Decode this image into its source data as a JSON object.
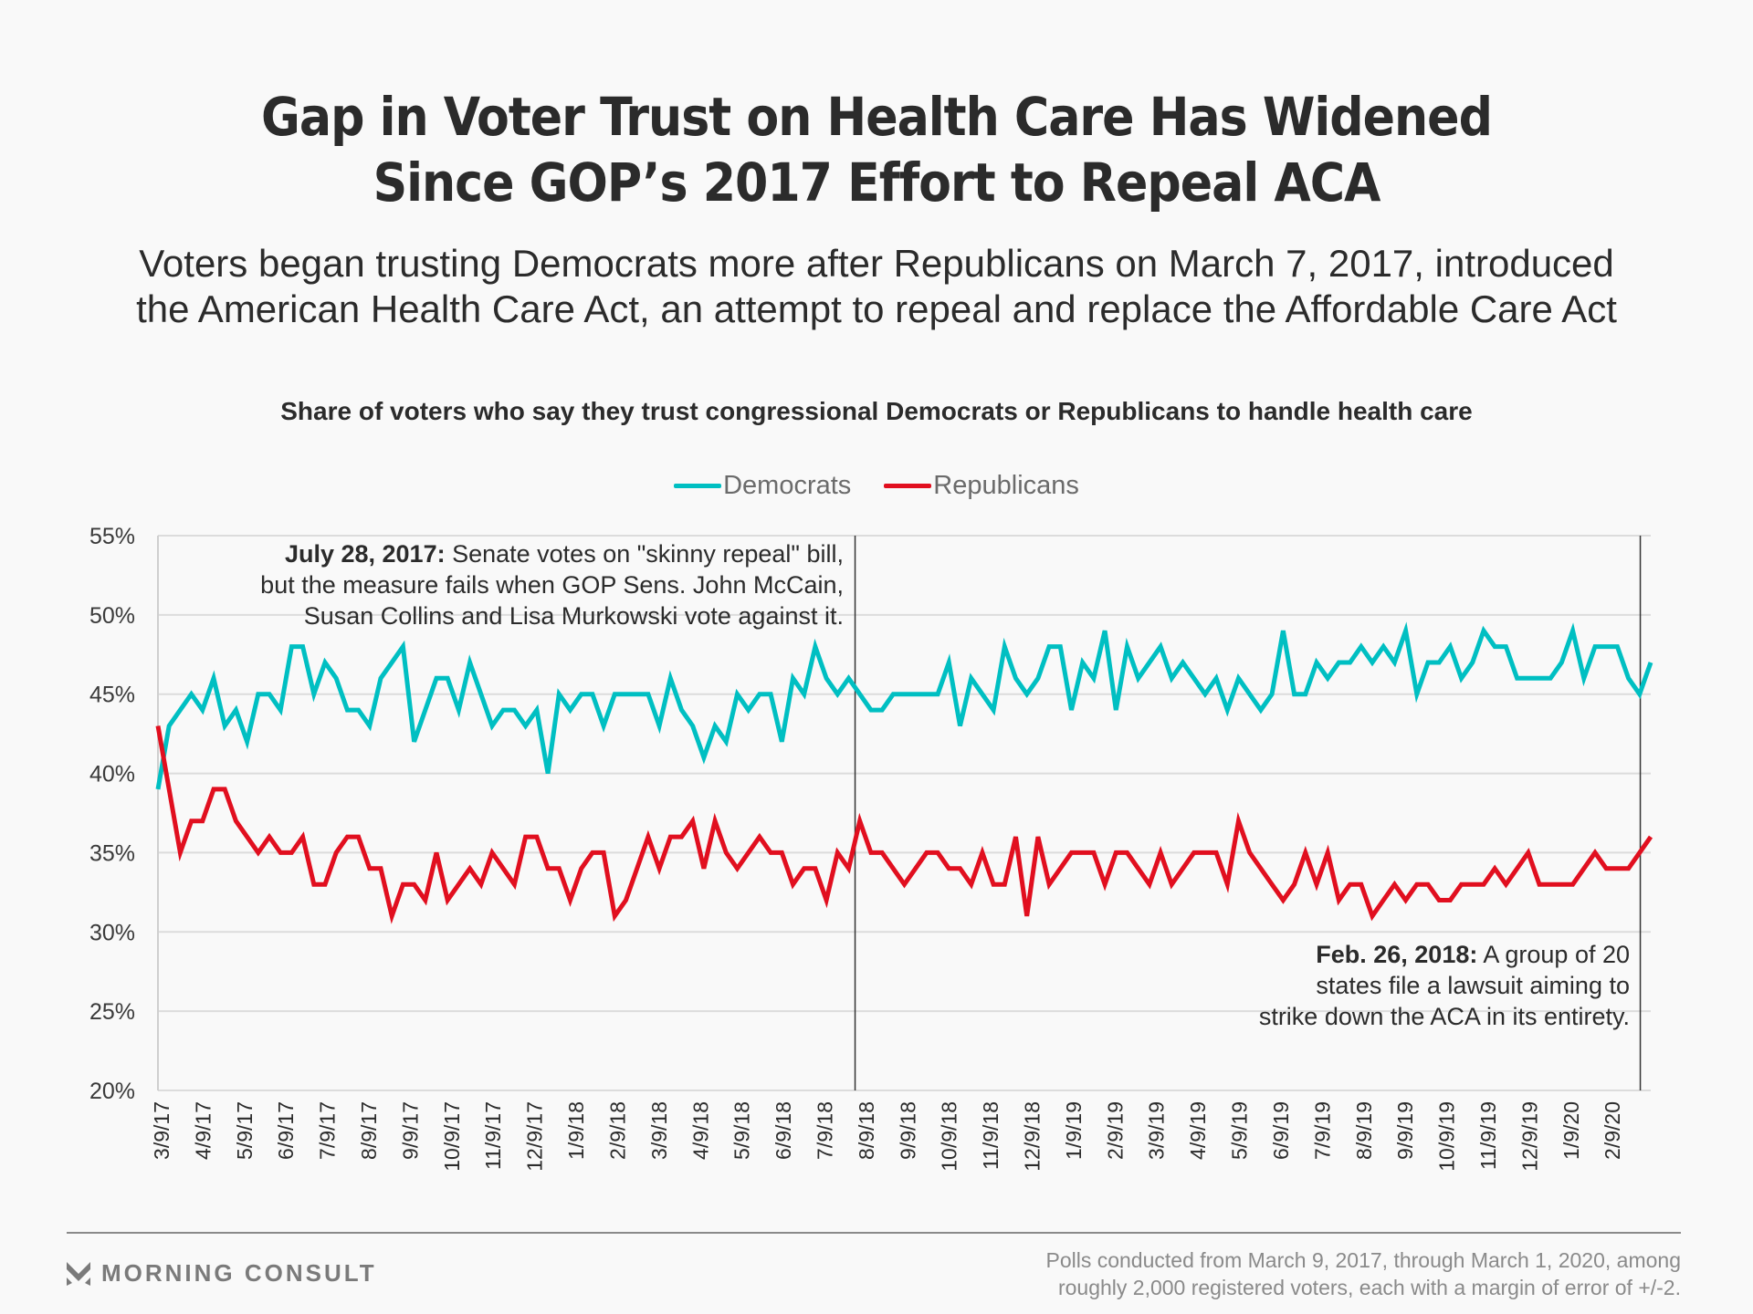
{
  "title_lines": [
    "Gap in Voter Trust on Health Care Has Widened",
    "Since GOP’s 2017 Effort to Repeal ACA"
  ],
  "subtitle_lines": [
    "Voters began trusting Democrats more after Republicans on March 7, 2017, introduced",
    "the American Health Care Act, an attempt to repeal and replace the Affordable Care Act"
  ],
  "footer": {
    "logo_text": "MORNING CONSULT",
    "source_lines": [
      "Polls conducted from March 9, 2017, through March 1, 2020, among",
      "roughly 2,000 registered voters, each with a margin of error of +/-2."
    ]
  },
  "chart_data": {
    "type": "line",
    "title": "Share of voters who say they trust congressional Democrats or Republicans to handle health care",
    "xlabel": "",
    "ylabel": "",
    "ylim": [
      20,
      55
    ],
    "yticks": [
      20,
      25,
      30,
      35,
      40,
      45,
      50,
      55
    ],
    "ytick_labels": [
      "20%",
      "25%",
      "30%",
      "35%",
      "40%",
      "45%",
      "50%",
      "55%"
    ],
    "xtick_labels": [
      "3/9/17",
      "4/9/17",
      "5/9/17",
      "6/9/17",
      "7/9/17",
      "8/9/17",
      "9/9/17",
      "10/9/17",
      "11/9/17",
      "12/9/17",
      "1/9/18",
      "2/9/18",
      "3/9/18",
      "4/9/18",
      "5/9/18",
      "6/9/18",
      "7/9/18",
      "8/9/18",
      "9/9/18",
      "10/9/18",
      "11/9/18",
      "12/9/18",
      "1/9/19",
      "2/9/19",
      "3/9/19",
      "4/9/19",
      "5/9/19",
      "6/9/19",
      "7/9/19",
      "8/9/19",
      "9/9/19",
      "10/9/19",
      "11/9/19",
      "12/9/19",
      "1/9/20",
      "2/9/20"
    ],
    "x_range": [
      "3/9/17",
      "3/1/20"
    ],
    "grid": true,
    "legend_position": "top-center",
    "series": [
      {
        "name": "Democrats",
        "color": "#00bfc2",
        "values": [
          39,
          43,
          44,
          45,
          44,
          46,
          43,
          44,
          42,
          45,
          45,
          44,
          48,
          48,
          45,
          47,
          46,
          44,
          44,
          43,
          46,
          47,
          48,
          42,
          44,
          46,
          46,
          44,
          47,
          45,
          43,
          44,
          44,
          43,
          44,
          40,
          45,
          44,
          45,
          45,
          43,
          45,
          45,
          45,
          45,
          43,
          46,
          44,
          43,
          41,
          43,
          42,
          45,
          44,
          45,
          45,
          42,
          46,
          45,
          48,
          46,
          45,
          46,
          45,
          44,
          44,
          45,
          45,
          45,
          45,
          45,
          47,
          43,
          46,
          45,
          44,
          48,
          46,
          45,
          46,
          48,
          48,
          44,
          47,
          46,
          49,
          44,
          48,
          46,
          47,
          48,
          46,
          47,
          46,
          45,
          46,
          44,
          46,
          45,
          44,
          45,
          49,
          45,
          45,
          47,
          46,
          47,
          47,
          48,
          47,
          48,
          47,
          49,
          45,
          47,
          47,
          48,
          46,
          47,
          49,
          48,
          48,
          46,
          46,
          46,
          46,
          47,
          49,
          46,
          48,
          48,
          48,
          46,
          45,
          47
        ]
      },
      {
        "name": "Republicans",
        "color": "#e10f1f",
        "values": [
          43,
          39,
          35,
          37,
          37,
          39,
          39,
          37,
          36,
          35,
          36,
          35,
          35,
          36,
          33,
          33,
          35,
          36,
          36,
          34,
          34,
          31,
          33,
          33,
          32,
          35,
          32,
          33,
          34,
          33,
          35,
          34,
          33,
          36,
          36,
          34,
          34,
          32,
          34,
          35,
          35,
          31,
          32,
          34,
          36,
          34,
          36,
          36,
          37,
          34,
          37,
          35,
          34,
          35,
          36,
          35,
          35,
          33,
          34,
          34,
          32,
          35,
          34,
          37,
          35,
          35,
          34,
          33,
          34,
          35,
          35,
          34,
          34,
          33,
          35,
          33,
          33,
          36,
          31,
          36,
          33,
          34,
          35,
          35,
          35,
          33,
          35,
          35,
          34,
          33,
          35,
          33,
          34,
          35,
          35,
          35,
          33,
          37,
          35,
          34,
          33,
          32,
          33,
          35,
          33,
          35,
          32,
          33,
          33,
          31,
          32,
          33,
          32,
          33,
          33,
          32,
          32,
          33,
          33,
          33,
          34,
          33,
          34,
          35,
          33,
          33,
          33,
          33,
          34,
          35,
          34,
          34,
          34,
          35,
          36
        ]
      }
    ],
    "annotations": [
      {
        "date": "7/28/17",
        "bold": "July 28, 2017:",
        "text_lines": [
          " Senate votes on \"skinny repeal\" bill,",
          "but the measure fails when GOP Sens. John McCain,",
          "Susan Collins and Lisa Murkowski vote against it."
        ],
        "x_fraction": 0.467
      },
      {
        "date": "2/26/18",
        "bold": "Feb. 26, 2018:",
        "text_lines": [
          " A group of 20",
          "states file a lawsuit aiming to",
          "strike down the ACA in its entirety."
        ],
        "x_fraction": 0.993
      }
    ]
  }
}
